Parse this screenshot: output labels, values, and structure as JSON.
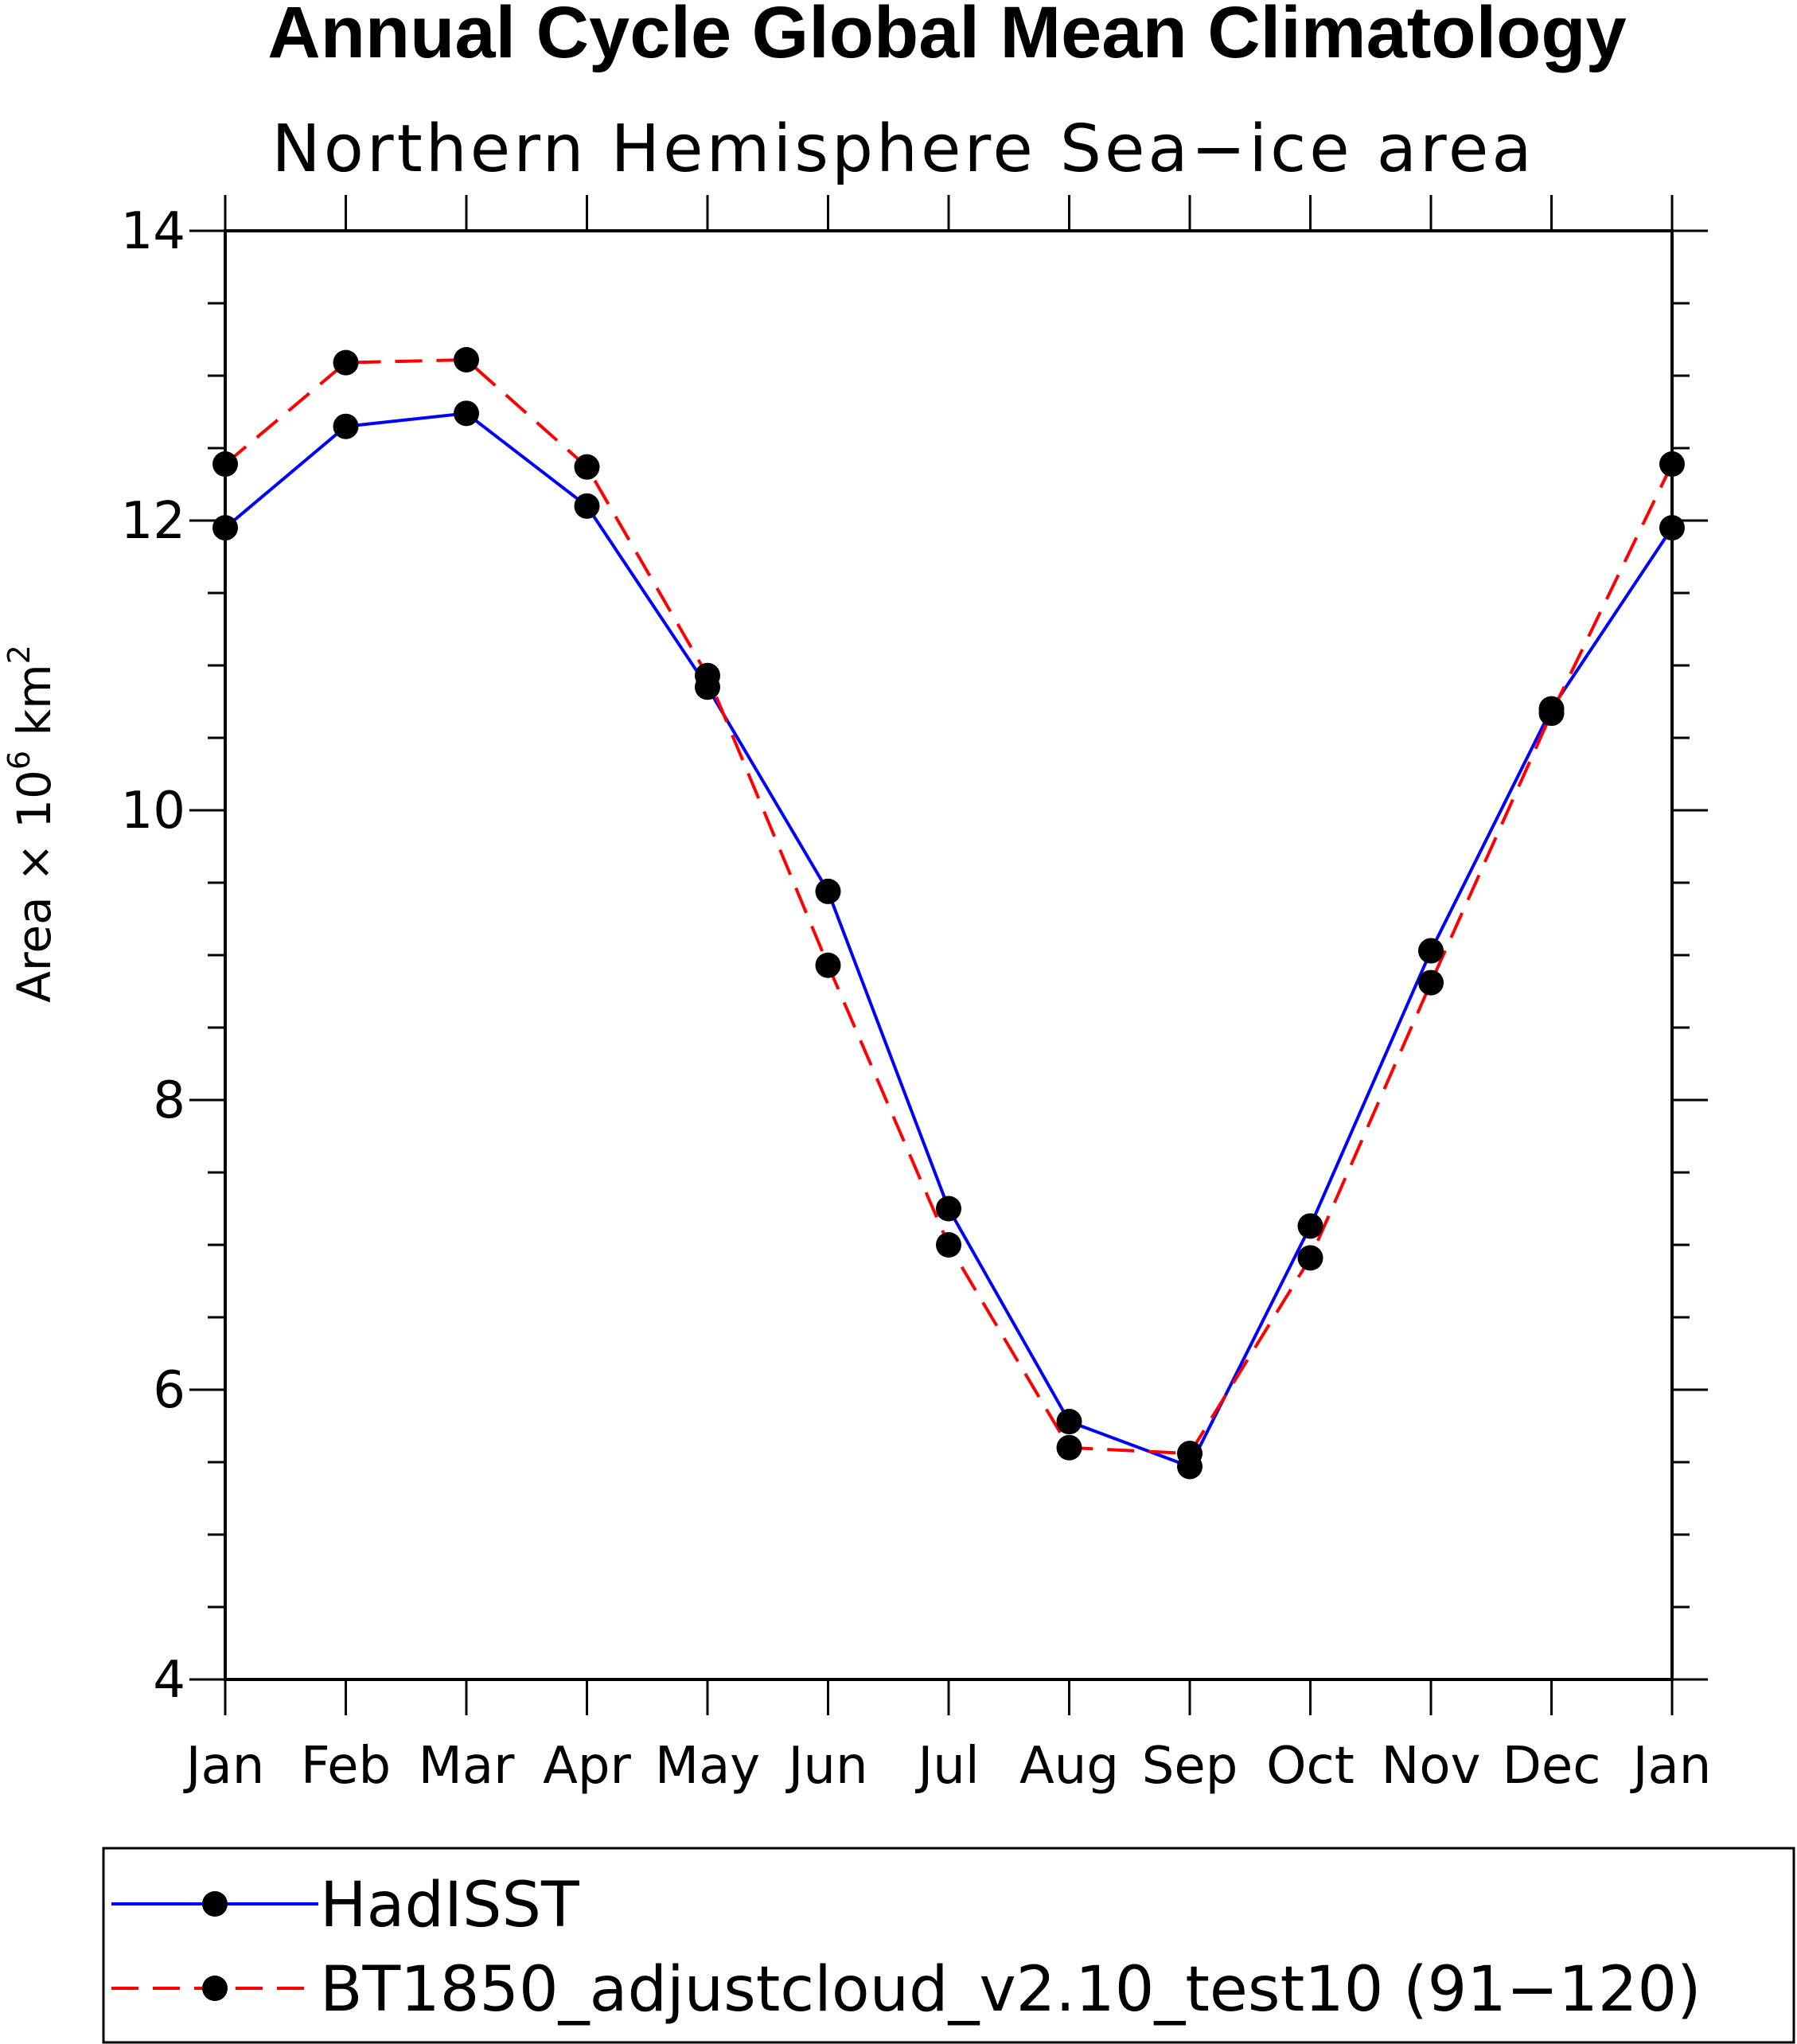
{
  "chart_data": {
    "type": "line",
    "title": "Annual Cycle Global Mean Climatology",
    "subtitle": "Northern Hemisphere Sea−ice area",
    "ylabel_main": "Area × 10",
    "ylabel_exp1": "6",
    "ylabel_unit": " km",
    "ylabel_exp2": "2",
    "ylim": [
      4,
      14
    ],
    "yticks": [
      4,
      6,
      8,
      10,
      12,
      14
    ],
    "yticks_minor_step": 0.5,
    "categories": [
      "Jan",
      "Feb",
      "Mar",
      "Apr",
      "May",
      "Jun",
      "Jul",
      "Aug",
      "Sep",
      "Oct",
      "Nov",
      "Dec",
      "Jan"
    ],
    "series": [
      {
        "name": "HadISST",
        "color": "#0000ff",
        "dash": "solid",
        "values": [
          11.95,
          12.65,
          12.74,
          12.1,
          10.85,
          9.44,
          7.25,
          5.78,
          5.47,
          7.13,
          9.03,
          10.7,
          11.95
        ]
      },
      {
        "name": "BT1850_adjustcloud_v2.10_test10 (91−120)",
        "color": "#ff0000",
        "dash": "dashed",
        "values": [
          12.39,
          13.09,
          13.11,
          12.37,
          10.93,
          8.93,
          7.0,
          5.6,
          5.56,
          6.91,
          8.81,
          10.67,
          12.39
        ]
      }
    ],
    "legend_position": "bottom"
  }
}
